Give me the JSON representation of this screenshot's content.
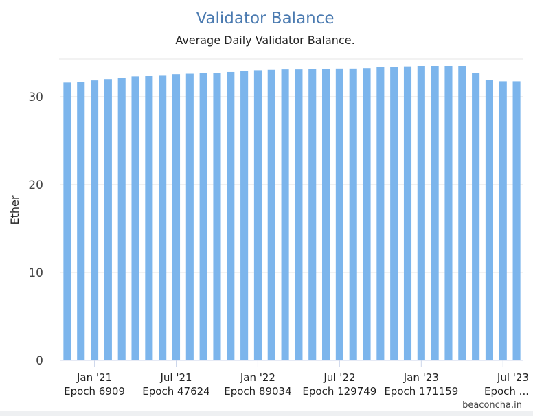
{
  "chart_data": {
    "type": "bar",
    "title": "Validator Balance",
    "subtitle": "Average Daily Validator Balance.",
    "ylabel": "Ether",
    "xlabel": "",
    "ylim": [
      0,
      33.5
    ],
    "yticks": [
      0,
      10,
      20,
      30
    ],
    "x_tick_labels": [
      {
        "month": "Jan '21",
        "epoch": "Epoch 6909",
        "bar_index": 2
      },
      {
        "month": "Jul '21",
        "epoch": "Epoch 47624",
        "bar_index": 8
      },
      {
        "month": "Jan '22",
        "epoch": "Epoch 89034",
        "bar_index": 14
      },
      {
        "month": "Jul '22",
        "epoch": "Epoch 129749",
        "bar_index": 20
      },
      {
        "month": "Jan '23",
        "epoch": "Epoch 171159",
        "bar_index": 26
      },
      {
        "month": "Jul '23",
        "epoch": "Epoch ...",
        "bar_index": 32
      }
    ],
    "values": [
      31.6,
      31.7,
      31.85,
      32.0,
      32.15,
      32.3,
      32.4,
      32.45,
      32.55,
      32.6,
      32.65,
      32.7,
      32.8,
      32.9,
      33.0,
      33.05,
      33.1,
      33.1,
      33.15,
      33.15,
      33.2,
      33.2,
      33.25,
      33.35,
      33.4,
      33.45,
      33.5,
      33.5,
      33.5,
      33.5,
      32.7,
      31.9,
      31.75,
      31.75
    ],
    "bar_color": "#7cb5ec",
    "grid": true,
    "legend": "none",
    "credit": "beaconcha.in"
  }
}
